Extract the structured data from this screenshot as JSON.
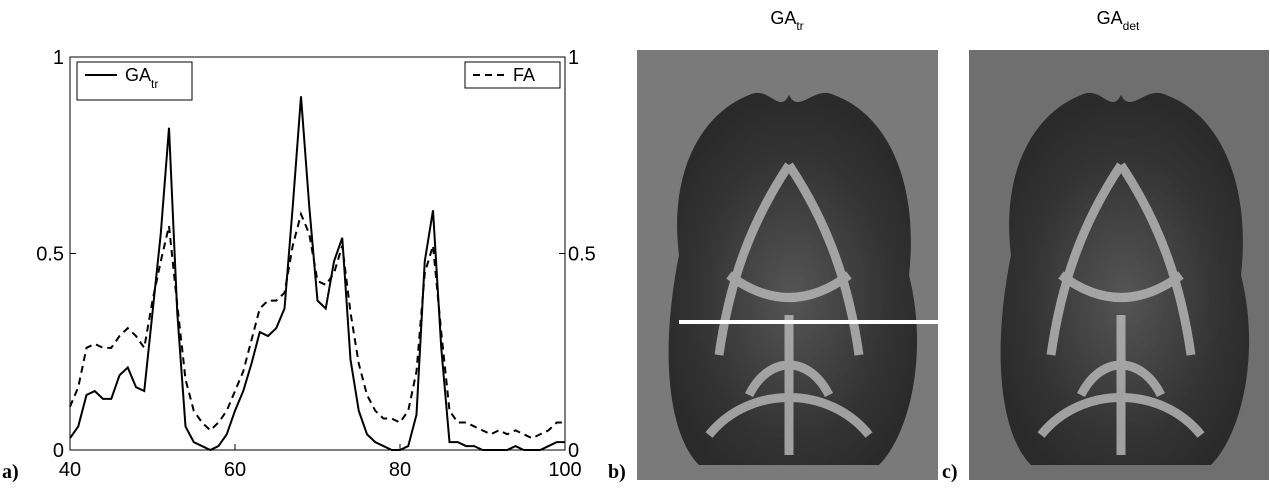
{
  "chart_data": {
    "type": "line",
    "x": [
      40,
      41,
      42,
      43,
      44,
      45,
      46,
      47,
      48,
      49,
      50,
      51,
      52,
      53,
      54,
      55,
      56,
      57,
      58,
      59,
      60,
      61,
      62,
      63,
      64,
      65,
      66,
      67,
      68,
      69,
      70,
      71,
      72,
      73,
      74,
      75,
      76,
      77,
      78,
      79,
      80,
      81,
      82,
      83,
      84,
      85,
      86,
      87,
      88,
      89,
      90,
      91,
      92,
      93,
      94,
      95,
      96,
      97,
      98,
      99,
      100
    ],
    "series": [
      {
        "name": "GA",
        "subscript": "tr",
        "color": "#000000",
        "dash": false,
        "values": [
          0.03,
          0.06,
          0.14,
          0.15,
          0.13,
          0.13,
          0.19,
          0.21,
          0.16,
          0.15,
          0.35,
          0.55,
          0.82,
          0.35,
          0.06,
          0.02,
          0.01,
          0.0,
          0.01,
          0.04,
          0.1,
          0.15,
          0.22,
          0.3,
          0.29,
          0.31,
          0.36,
          0.62,
          0.9,
          0.62,
          0.38,
          0.36,
          0.48,
          0.54,
          0.23,
          0.1,
          0.04,
          0.02,
          0.01,
          0.0,
          0.0,
          0.01,
          0.09,
          0.48,
          0.61,
          0.26,
          0.02,
          0.02,
          0.01,
          0.01,
          0.0,
          0.0,
          0.0,
          0.0,
          0.01,
          0.0,
          0.0,
          0.0,
          0.01,
          0.02,
          0.02
        ]
      },
      {
        "name": "FA",
        "color": "#000000",
        "dash": true,
        "values": [
          0.11,
          0.16,
          0.26,
          0.27,
          0.26,
          0.26,
          0.29,
          0.31,
          0.29,
          0.26,
          0.38,
          0.48,
          0.57,
          0.37,
          0.18,
          0.1,
          0.07,
          0.05,
          0.07,
          0.1,
          0.15,
          0.2,
          0.28,
          0.36,
          0.38,
          0.38,
          0.4,
          0.52,
          0.6,
          0.55,
          0.43,
          0.42,
          0.45,
          0.52,
          0.35,
          0.22,
          0.14,
          0.1,
          0.08,
          0.08,
          0.07,
          0.1,
          0.2,
          0.45,
          0.52,
          0.3,
          0.1,
          0.07,
          0.07,
          0.06,
          0.05,
          0.04,
          0.05,
          0.04,
          0.05,
          0.04,
          0.03,
          0.04,
          0.05,
          0.07,
          0.07
        ]
      }
    ],
    "xlim": [
      40,
      100
    ],
    "xticks": [
      40,
      60,
      80,
      100
    ],
    "ylim": [
      0,
      1
    ],
    "yticks": [
      0,
      0.5,
      1
    ],
    "y2lim": [
      0,
      1
    ],
    "y2ticks": [
      0,
      0.5,
      1
    ],
    "panel_label": "a)"
  },
  "images": [
    {
      "title": "GA",
      "subscript": "tr",
      "panel_label": "b)"
    },
    {
      "title": "GA",
      "subscript": "det",
      "panel_label": "c)"
    }
  ]
}
